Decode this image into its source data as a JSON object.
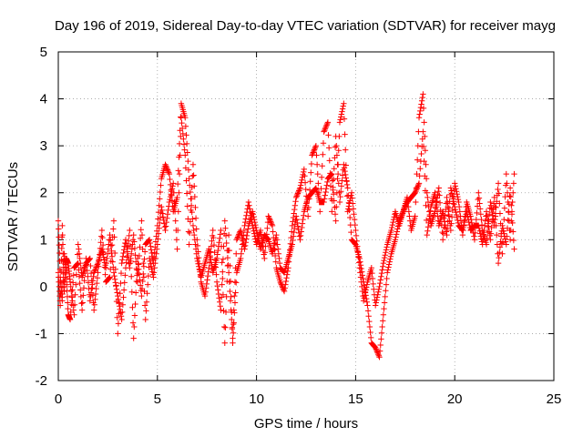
{
  "chart_data": {
    "type": "scatter",
    "title": "Day 196 of 2019, Sidereal Day-to-day VTEC variation (SDTVAR) for receiver mayg",
    "xlabel": "GPS time / hours",
    "ylabel": "SDTVAR / TECUs",
    "xlim": [
      0,
      25
    ],
    "ylim": [
      -2,
      5
    ],
    "xticks": [
      0,
      5,
      10,
      15,
      20,
      25
    ],
    "yticks": [
      -2,
      -1,
      0,
      1,
      2,
      3,
      4,
      5
    ],
    "xtick_labels": [
      "0",
      "5",
      "10",
      "15",
      "20",
      "25"
    ],
    "ytick_labels": [
      "-2",
      "-1",
      "0",
      "1",
      "2",
      "3",
      "4",
      "5"
    ],
    "grid": true,
    "marker": "plus",
    "color": "#ff0000",
    "series": [
      {
        "name": "SDTVAR",
        "x": [
          0.0,
          0.1,
          0.2,
          0.3,
          0.4,
          0.5,
          0.6,
          0.8,
          1.0,
          1.2,
          1.4,
          1.6,
          1.8,
          2.0,
          2.2,
          2.4,
          2.6,
          2.8,
          3.0,
          3.2,
          3.4,
          3.6,
          3.8,
          4.0,
          4.2,
          4.4,
          4.6,
          4.8,
          5.0,
          5.2,
          5.4,
          5.6,
          5.8,
          6.0,
          6.2,
          6.4,
          6.6,
          6.8,
          7.0,
          7.2,
          7.4,
          7.6,
          7.8,
          8.0,
          8.2,
          8.4,
          8.6,
          8.8,
          9.0,
          9.2,
          9.4,
          9.6,
          9.8,
          10.0,
          10.2,
          10.4,
          10.6,
          10.8,
          11.0,
          11.2,
          11.4,
          11.6,
          11.8,
          12.0,
          12.2,
          12.4,
          12.6,
          12.8,
          13.0,
          13.2,
          13.4,
          13.6,
          13.8,
          14.0,
          14.2,
          14.4,
          14.6,
          14.8,
          15.0,
          15.2,
          15.4,
          15.6,
          15.8,
          16.0,
          16.2,
          16.4,
          16.6,
          16.8,
          17.0,
          17.2,
          17.4,
          17.6,
          17.8,
          18.0,
          18.2,
          18.4,
          18.6,
          18.8,
          19.0,
          19.2,
          19.4,
          19.6,
          19.8,
          20.0,
          20.2,
          20.4,
          20.6,
          20.8,
          21.0,
          21.2,
          21.4,
          21.6,
          21.8,
          22.0,
          22.2,
          22.4,
          22.6,
          22.8,
          23.0
        ],
        "y": [
          1.4,
          0.2,
          -0.3,
          0.7,
          0.3,
          -0.6,
          -0.7,
          0.4,
          0.5,
          -0.5,
          0.6,
          -0.3,
          0.3,
          0.5,
          0.8,
          0.4,
          1.1,
          0.3,
          -0.2,
          -0.7,
          0.4,
          1.2,
          -1.1,
          0.6,
          -0.2,
          0.9,
          1.0,
          0.5,
          1.3,
          2.3,
          2.6,
          2.4,
          1.6,
          1.9,
          3.9,
          3.6,
          2.3,
          1.3,
          0.6,
          0.2,
          0.5,
          0.8,
          0.3,
          0.6,
          1.2,
          -1.2,
          1.1,
          -1.2,
          0.3,
          0.6,
          1.3,
          1.8,
          1.3,
          0.9,
          1.2,
          0.6,
          1.5,
          1.3,
          0.4,
          0.1,
          -0.1,
          0.4,
          1.3,
          1.9,
          2.1,
          2.5,
          1.5,
          2.8,
          3.0,
          1.6,
          3.3,
          3.5,
          1.6,
          3.2,
          1.8,
          2.6,
          2.1,
          1.0,
          0.9,
          0.6,
          0.1,
          -0.4,
          -1.2,
          -1.3,
          -1.5,
          -0.6,
          0.3,
          0.7,
          1.0,
          1.4,
          1.6,
          1.9,
          1.2,
          1.5,
          3.6,
          4.1,
          2.0,
          1.3,
          1.6,
          2.1,
          1.0,
          1.9,
          1.2,
          2.2,
          1.8,
          1.1,
          1.8,
          1.5,
          1.0,
          2.0,
          1.2,
          0.9,
          1.8,
          1.3,
          2.2,
          0.7,
          2.4,
          1.0,
          2.4
        ],
        "y2": [
          0.3,
          -0.4,
          1.3,
          -0.1,
          0.6,
          0.5,
          0.1,
          -0.6,
          0.9,
          0.2,
          0.5,
          0.6,
          -0.5,
          0.3,
          1.2,
          0.1,
          0.2,
          1.4,
          -1.0,
          0.5,
          1.0,
          0.4,
          1.1,
          0.1,
          1.4,
          -0.7,
          0.6,
          0.2,
          0.9,
          1.7,
          1.2,
          1.8,
          2.2,
          0.8,
          3.6,
          2.8,
          0.9,
          2.6,
          1.0,
          0.1,
          -0.2,
          0.4,
          1.2,
          0.1,
          -0.5,
          1.4,
          0.3,
          -1.1,
          1.0,
          1.2,
          0.8,
          1.3,
          1.6,
          1.2,
          0.8,
          1.1,
          1.0,
          0.7,
          1.1,
          0.4,
          0.3,
          0.6,
          0.9,
          1.5,
          1.0,
          1.6,
          1.9,
          2.0,
          2.1,
          1.8,
          1.8,
          2.3,
          2.4,
          1.4,
          3.5,
          3.9,
          1.6,
          2.0,
          1.2,
          0.4,
          -0.3,
          0.1,
          0.4,
          -0.4,
          0.0,
          0.5,
          0.9,
          1.2,
          1.6,
          1.3,
          1.6,
          1.8,
          1.9,
          2.0,
          2.2,
          3.3,
          1.1,
          1.7,
          2.0,
          1.3,
          1.6,
          1.1,
          2.1,
          1.7,
          1.3,
          1.2,
          1.6,
          1.2,
          1.3,
          1.3,
          0.9,
          1.6,
          1.0,
          1.9,
          0.5,
          1.3,
          0.9,
          2.1,
          0.8
        ]
      }
    ]
  }
}
